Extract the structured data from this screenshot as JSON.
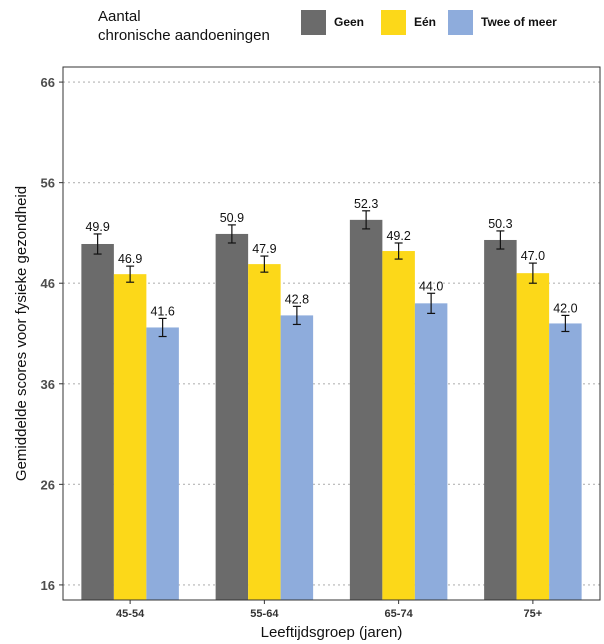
{
  "chart_data": {
    "type": "bar",
    "title": "",
    "xlabel": "Leeftijdsgroep (jaren)",
    "ylabel": "Gemiddelde scores voor fysieke gezondheid",
    "ylim": [
      14.5,
      67.5
    ],
    "yticks": [
      16,
      26,
      36,
      46,
      56,
      66
    ],
    "grid": "horizontal dotted",
    "legend_position": "top",
    "legend_title": "Aantal\nchronische aandoeningen",
    "categories": [
      "45-54",
      "55-64",
      "65-74",
      "75+"
    ],
    "series": [
      {
        "name": "Geen",
        "color": "#6b6b6b",
        "values": [
          49.9,
          50.9,
          52.3,
          50.3
        ],
        "error": [
          1.0,
          0.9,
          0.9,
          0.9
        ]
      },
      {
        "name": "Eén",
        "color": "#fcd819",
        "values": [
          46.9,
          47.9,
          49.2,
          47.0
        ],
        "error": [
          0.8,
          0.8,
          0.8,
          1.0
        ]
      },
      {
        "name": "Twee of meer",
        "color": "#8eacdc",
        "values": [
          41.6,
          42.8,
          44.0,
          42.0
        ],
        "error": [
          0.9,
          0.9,
          1.0,
          0.8
        ]
      }
    ],
    "labels_format": "fixed1"
  }
}
